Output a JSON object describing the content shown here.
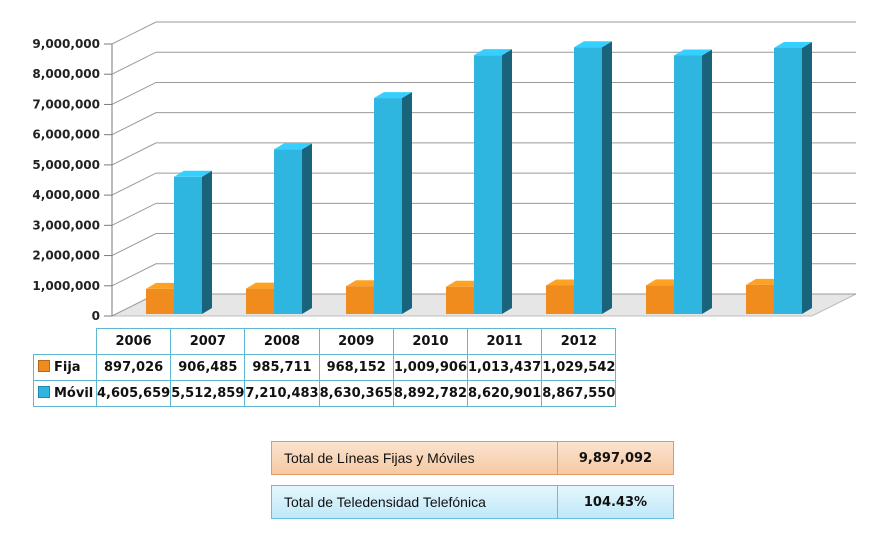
{
  "chart_data": {
    "type": "bar",
    "categories": [
      "2006",
      "2007",
      "2008",
      "2009",
      "2010",
      "2011",
      "2012"
    ],
    "series": [
      {
        "name": "Fija",
        "values": [
          897026,
          906485,
          985711,
          968152,
          1009906,
          1013437,
          1029542
        ]
      },
      {
        "name": "Móvil",
        "values": [
          4605659,
          5512859,
          7210483,
          8630365,
          8892782,
          8620901,
          8867550
        ]
      }
    ],
    "ylim": [
      0,
      9000000
    ],
    "yticks": [
      "0",
      "1,000,000",
      "2,000,000",
      "3,000,000",
      "4,000,000",
      "5,000,000",
      "6,000,000",
      "7,000,000",
      "8,000,000",
      "9,000,000"
    ],
    "grid": true,
    "style": "3d-column",
    "colors": {
      "Fija": "#f08c1e",
      "Móvil": "#2eb5e0"
    },
    "data_table": {
      "headers": [
        "2006",
        "2007",
        "2008",
        "2009",
        "2010",
        "2011",
        "2012"
      ],
      "rows": [
        {
          "label": "Fija",
          "cells": [
            "897,026",
            "906,485",
            "985,711",
            "968,152",
            "1,009,906",
            "1,013,437",
            "1,029,542"
          ]
        },
        {
          "label": "Móvil",
          "cells": [
            "4,605,659",
            "5,512,859",
            "7,210,483",
            "8,630,365",
            "8,892,782",
            "8,620,901",
            "8,867,550"
          ]
        }
      ]
    }
  },
  "summary": {
    "lineas": {
      "label": "Total de Líneas Fijas y Móviles",
      "value": "9,897,092"
    },
    "teledensidad": {
      "label": "Total de Teledensidad Telefónica",
      "value": "104.43%"
    }
  }
}
